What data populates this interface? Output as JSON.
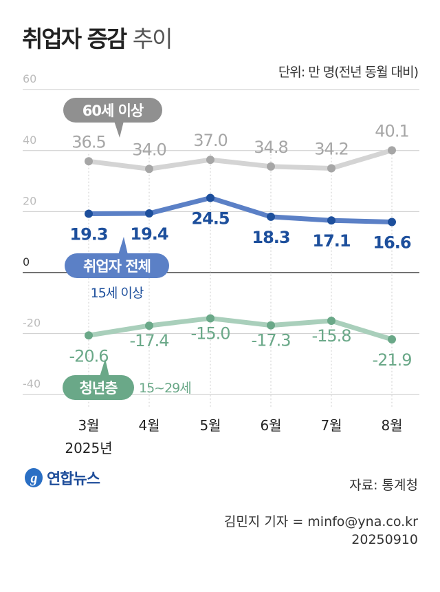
{
  "header": {
    "title": "취업자 증감",
    "title_sub": "추이",
    "unit": "단위: 만 명(전년 동월 대비)"
  },
  "chart_data": {
    "type": "line",
    "categories": [
      "3월",
      "4월",
      "5월",
      "6월",
      "7월",
      "8월"
    ],
    "year_label": "2025년",
    "ylim": [
      -40,
      60
    ],
    "yticks": [
      60,
      40,
      20,
      0,
      -20,
      -40
    ],
    "grid": true,
    "series": [
      {
        "name": "60세 이상",
        "values": [
          36.5,
          34.0,
          37.0,
          34.8,
          34.2,
          40.1
        ],
        "labels": [
          "36.5",
          "34.0",
          "37.0",
          "34.8",
          "34.2",
          "40.1"
        ],
        "color": "#a6a6a6",
        "line_color": "#d4d4d4"
      },
      {
        "name": "취업자 전체",
        "note": "15세 이상",
        "values": [
          19.3,
          19.4,
          24.5,
          18.3,
          17.1,
          16.6
        ],
        "labels": [
          "19.3",
          "19.4",
          "24.5",
          "18.3",
          "17.1",
          "16.6"
        ],
        "color": "#1d4f9c",
        "line_color": "#5b80c6"
      },
      {
        "name": "청년층",
        "note": "15~29세",
        "values": [
          -20.6,
          -17.4,
          -15.0,
          -17.3,
          -15.8,
          -21.9
        ],
        "labels": [
          "-20.6",
          "-17.4",
          "-15.0",
          "-17.3",
          "-15.8",
          "-21.9"
        ],
        "color": "#6aa888",
        "line_color": "#a9cfbb"
      }
    ]
  },
  "footer": {
    "logo": "연합뉴스",
    "source": "자료: 통계청",
    "reporter": "김민지 기자 = minfo@yna.co.kr",
    "date": "20250910"
  }
}
